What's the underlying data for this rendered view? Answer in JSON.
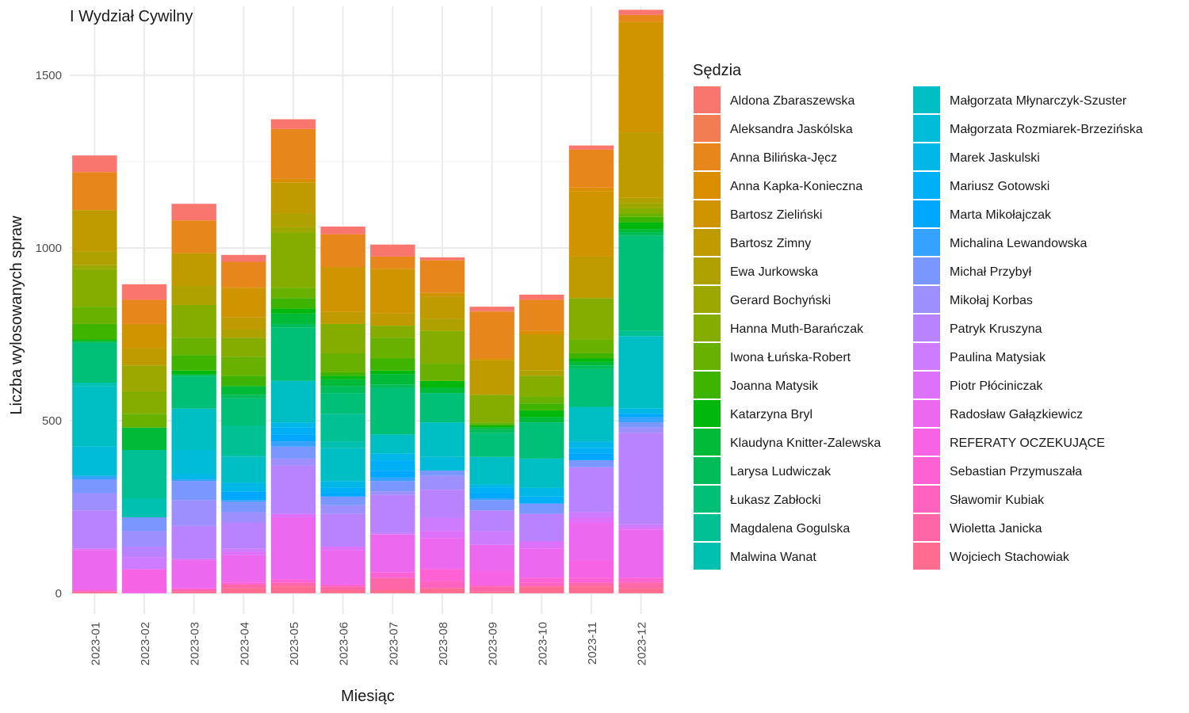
{
  "chart_data": {
    "type": "bar",
    "stacked": true,
    "title": "I Wydział Cywilny",
    "xlabel": "Miesiąc",
    "ylabel": "Liczba wylosowanych spraw",
    "ylim": [
      -60,
      1700
    ],
    "y_ticks": [
      0,
      500,
      1000,
      1500
    ],
    "grid": true,
    "legend_title": "Sędzia",
    "legend_position": "right",
    "categories": [
      "2023-01",
      "2023-02",
      "2023-03",
      "2023-04",
      "2023-05",
      "2023-06",
      "2023-07",
      "2023-08",
      "2023-09",
      "2023-10",
      "2023-11",
      "2023-12"
    ],
    "series": [
      {
        "name": "Aldona Zbaraszewska",
        "color": "#F8766D",
        "values": [
          48,
          45,
          48,
          20,
          28,
          22,
          35,
          8,
          12,
          15,
          12,
          15
        ]
      },
      {
        "name": "Aleksandra Jaskólska",
        "color": "#F27D53",
        "values": [
          0,
          0,
          0,
          0,
          0,
          0,
          0,
          0,
          2,
          0,
          0,
          0
        ]
      },
      {
        "name": "Anna Bilińska-Jęcz",
        "color": "#E7861B",
        "values": [
          110,
          70,
          95,
          75,
          145,
          95,
          35,
          95,
          135,
          90,
          110,
          20
        ]
      },
      {
        "name": "Anna Kapka-Konieczna",
        "color": "#DB8E00",
        "values": [
          0,
          0,
          0,
          0,
          10,
          0,
          0,
          0,
          6,
          10,
          10,
          0
        ]
      },
      {
        "name": "Bartosz Zieliński",
        "color": "#CF9400",
        "values": [
          0,
          70,
          0,
          85,
          0,
          130,
          130,
          10,
          0,
          0,
          190,
          320
        ]
      },
      {
        "name": "Bartosz Zimny",
        "color": "#C09B00",
        "values": [
          120,
          50,
          95,
          35,
          90,
          35,
          35,
          65,
          100,
          105,
          120,
          190
        ]
      },
      {
        "name": "Ewa Jurkowska",
        "color": "#AFA100",
        "values": [
          40,
          0,
          55,
          25,
          40,
          0,
          0,
          35,
          0,
          15,
          0,
          15
        ]
      },
      {
        "name": "Gerard Bochyński",
        "color": "#9CA700",
        "values": [
          10,
          75,
          0,
          0,
          15,
          0,
          0,
          0,
          0,
          0,
          0,
          15
        ]
      },
      {
        "name": "Hanna Muth-Barańczak",
        "color": "#85AD00",
        "values": [
          110,
          65,
          95,
          55,
          160,
          85,
          35,
          95,
          80,
          60,
          120,
          15
        ]
      },
      {
        "name": "Iwona Łuńska-Robert",
        "color": "#68B100",
        "values": [
          50,
          40,
          50,
          55,
          30,
          55,
          60,
          50,
          5,
          20,
          40,
          10
        ]
      },
      {
        "name": "Joanna Matysik",
        "color": "#3EB400",
        "values": [
          45,
          0,
          45,
          30,
          30,
          10,
          35,
          0,
          5,
          20,
          15,
          15
        ]
      },
      {
        "name": "Katarzyna Bryl",
        "color": "#00B80B",
        "values": [
          5,
          0,
          10,
          0,
          15,
          10,
          10,
          20,
          5,
          20,
          10,
          20
        ]
      },
      {
        "name": "Klaudyna Knitter-Zalewska",
        "color": "#00BA38",
        "values": [
          0,
          65,
          5,
          25,
          30,
          20,
          30,
          15,
          5,
          15,
          10,
          10
        ]
      },
      {
        "name": "Larysa Ludwiczak",
        "color": "#00BC59",
        "values": [
          5,
          0,
          0,
          10,
          10,
          20,
          10,
          0,
          10,
          0,
          10,
          10
        ]
      },
      {
        "name": "Łukasz Zabłocki",
        "color": "#00BF77",
        "values": [
          115,
          0,
          95,
          80,
          155,
          60,
          135,
          85,
          70,
          105,
          110,
          275
        ]
      },
      {
        "name": "Magdalena Gogulska",
        "color": "#00C094",
        "values": [
          0,
          140,
          0,
          85,
          0,
          80,
          0,
          0,
          0,
          0,
          0,
          15
        ]
      },
      {
        "name": "Malwina Wanat",
        "color": "#00C0AF",
        "values": [
          10,
          55,
          0,
          5,
          0,
          20,
          0,
          0,
          0,
          0,
          0,
          0
        ]
      },
      {
        "name": "Małgorzata Młynarczyk-Szuster",
        "color": "#00BFC4",
        "values": [
          175,
          0,
          120,
          75,
          120,
          95,
          55,
          100,
          80,
          85,
          100,
          210
        ]
      },
      {
        "name": "Małgorzata Rozmiarek-Brzezińska",
        "color": "#00BCD8",
        "values": [
          85,
          0,
          70,
          0,
          0,
          0,
          0,
          40,
          0,
          0,
          0,
          0
        ]
      },
      {
        "name": "Marek Jaskulski",
        "color": "#00B7E8",
        "values": [
          0,
          0,
          15,
          25,
          15,
          20,
          20,
          0,
          10,
          25,
          20,
          15
        ]
      },
      {
        "name": "Mariusz Gotowski",
        "color": "#00B0F6",
        "values": [
          0,
          0,
          0,
          0,
          20,
          15,
          30,
          0,
          15,
          20,
          15,
          0
        ]
      },
      {
        "name": "Marta Mikołajczak",
        "color": "#00A7FF",
        "values": [
          0,
          0,
          0,
          25,
          20,
          10,
          20,
          0,
          15,
          0,
          20,
          10
        ]
      },
      {
        "name": "Michalina Lewandowska",
        "color": "#35A2FF",
        "values": [
          10,
          0,
          5,
          5,
          15,
          0,
          10,
          0,
          5,
          0,
          0,
          15
        ]
      },
      {
        "name": "Michał Przybył",
        "color": "#7997FF",
        "values": [
          40,
          40,
          55,
          30,
          35,
          25,
          30,
          15,
          30,
          30,
          20,
          15
        ]
      },
      {
        "name": "Mikołaj Korbas",
        "color": "#9E8FFF",
        "values": [
          50,
          45,
          75,
          30,
          20,
          25,
          10,
          40,
          0,
          0,
          0,
          15
        ]
      },
      {
        "name": "Patryk Kruszyna",
        "color": "#B983FF",
        "values": [
          110,
          30,
          95,
          75,
          140,
          95,
          110,
          80,
          60,
          80,
          130,
          265
        ]
      },
      {
        "name": "Paulina Matysiak",
        "color": "#CD7BFF",
        "values": [
          0,
          35,
          0,
          10,
          0,
          0,
          5,
          40,
          40,
          0,
          15,
          10
        ]
      },
      {
        "name": "Piotr Płóciniczak",
        "color": "#DE71F9",
        "values": [
          5,
          0,
          5,
          10,
          10,
          10,
          0,
          20,
          0,
          20,
          15,
          5
        ]
      },
      {
        "name": "Radosław Gałązkiewicz",
        "color": "#EC69EF",
        "values": [
          115,
          0,
          80,
          75,
          180,
          100,
          110,
          90,
          75,
          85,
          110,
          140
        ]
      },
      {
        "name": "REFERATY OCZEKUJĄCE",
        "color": "#F663E4",
        "values": [
          0,
          70,
          0,
          5,
          0,
          0,
          0,
          0,
          40,
          0,
          50,
          0
        ]
      },
      {
        "name": "Sebastian Przymuszała",
        "color": "#FD61D3",
        "values": [
          5,
          0,
          5,
          5,
          10,
          5,
          15,
          35,
          5,
          15,
          15,
          10
        ]
      },
      {
        "name": "Sławomir Kubiak",
        "color": "#FF62BF",
        "values": [
          0,
          0,
          0,
          0,
          0,
          0,
          0,
          20,
          0,
          10,
          0,
          5
        ]
      },
      {
        "name": "Wioletta Janicka",
        "color": "#FF66A8",
        "values": [
          0,
          0,
          5,
          10,
          10,
          10,
          35,
          0,
          15,
          0,
          10,
          15
        ]
      },
      {
        "name": "Wojciech Stachowiak",
        "color": "#FF6C90",
        "values": [
          5,
          0,
          5,
          15,
          20,
          10,
          10,
          15,
          5,
          20,
          20,
          15
        ]
      }
    ]
  }
}
